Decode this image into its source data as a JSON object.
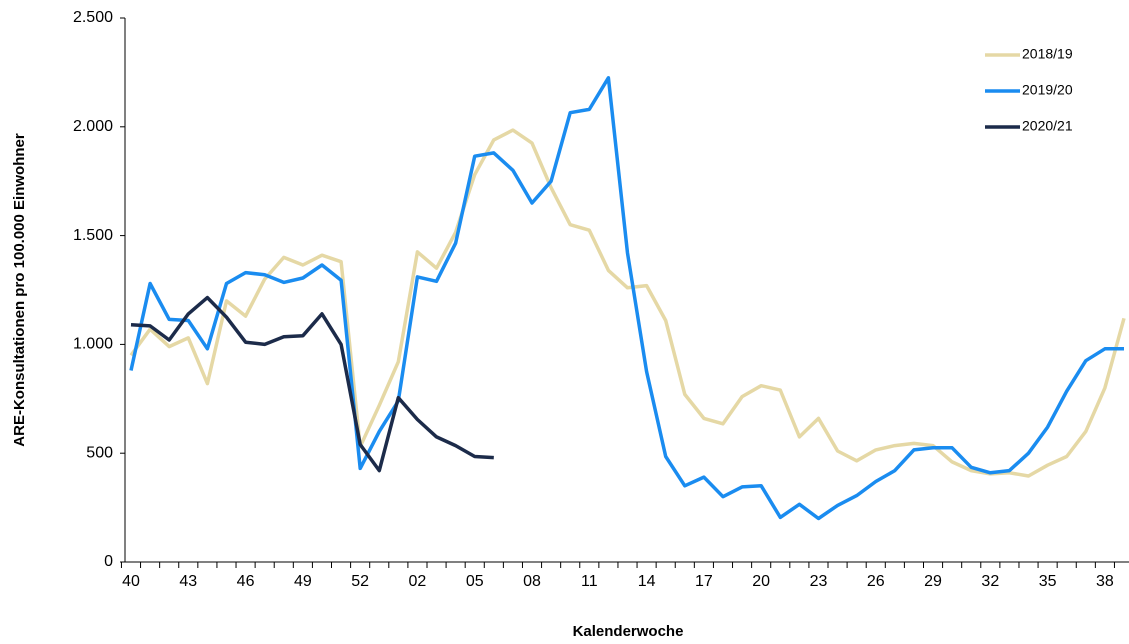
{
  "chart_data": {
    "type": "line",
    "x_label": "Kalenderwoche",
    "y_label": "ARE-Konsultationen pro 100.000 Einwohner",
    "categories": [
      "40",
      null,
      null,
      "43",
      null,
      null,
      "46",
      null,
      null,
      "49",
      null,
      null,
      "52",
      null,
      null,
      "02",
      null,
      null,
      "05",
      null,
      null,
      "08",
      null,
      null,
      "11",
      null,
      null,
      "14",
      null,
      null,
      "17",
      null,
      null,
      "20",
      null,
      null,
      "23",
      null,
      null,
      "26",
      null,
      null,
      "29",
      null,
      null,
      "32",
      null,
      null,
      "35",
      null,
      null,
      "38",
      null
    ],
    "ylim": [
      0,
      2500
    ],
    "yticks": [
      0,
      500,
      {
        "value": 1000,
        "label": "1.000"
      },
      {
        "value": 1500,
        "label": "1.500"
      },
      {
        "value": 2000,
        "label": "2.000"
      },
      {
        "value": 2500,
        "label": "2.500"
      }
    ],
    "grid": false,
    "legend": "upper right",
    "series": [
      {
        "name": "2018/19",
        "color": "#e5d8a5",
        "values": [
          950,
          1070,
          990,
          1030,
          820,
          1200,
          1130,
          1300,
          1400,
          1365,
          1410,
          1380,
          530,
          720,
          920,
          1425,
          1350,
          1515,
          1780,
          1940,
          1985,
          1925,
          1720,
          1550,
          1525,
          1340,
          1260,
          1270,
          1110,
          770,
          660,
          635,
          760,
          810,
          790,
          575,
          660,
          510,
          465,
          515,
          535,
          545,
          535,
          460,
          420,
          405,
          410,
          395,
          445,
          485,
          600,
          800,
          1120
        ]
      },
      {
        "name": "2019/20",
        "color": "#1a8cf0",
        "values": [
          880,
          1280,
          1115,
          1110,
          980,
          1280,
          1330,
          1320,
          1285,
          1305,
          1365,
          1295,
          430,
          600,
          740,
          1310,
          1290,
          1465,
          1865,
          1880,
          1800,
          1650,
          1750,
          2065,
          2080,
          2225,
          1420,
          875,
          485,
          350,
          390,
          300,
          345,
          350,
          205,
          265,
          200,
          260,
          305,
          370,
          420,
          515,
          525,
          525,
          435,
          410,
          420,
          500,
          620,
          785,
          925,
          980,
          980
        ]
      },
      {
        "name": "2020/21",
        "color": "#1c2b4a",
        "values": [
          1090,
          1085,
          1020,
          1140,
          1215,
          1125,
          1010,
          1000,
          1035,
          1040,
          1140,
          1000,
          540,
          420,
          755,
          655,
          575,
          535,
          485,
          480,
          null,
          null,
          null,
          null,
          null,
          null,
          null,
          null,
          null,
          null,
          null,
          null,
          null,
          null,
          null,
          null,
          null,
          null,
          null,
          null,
          null,
          null,
          null,
          null,
          null,
          null,
          null,
          null,
          null,
          null,
          null,
          null,
          null
        ]
      }
    ]
  }
}
